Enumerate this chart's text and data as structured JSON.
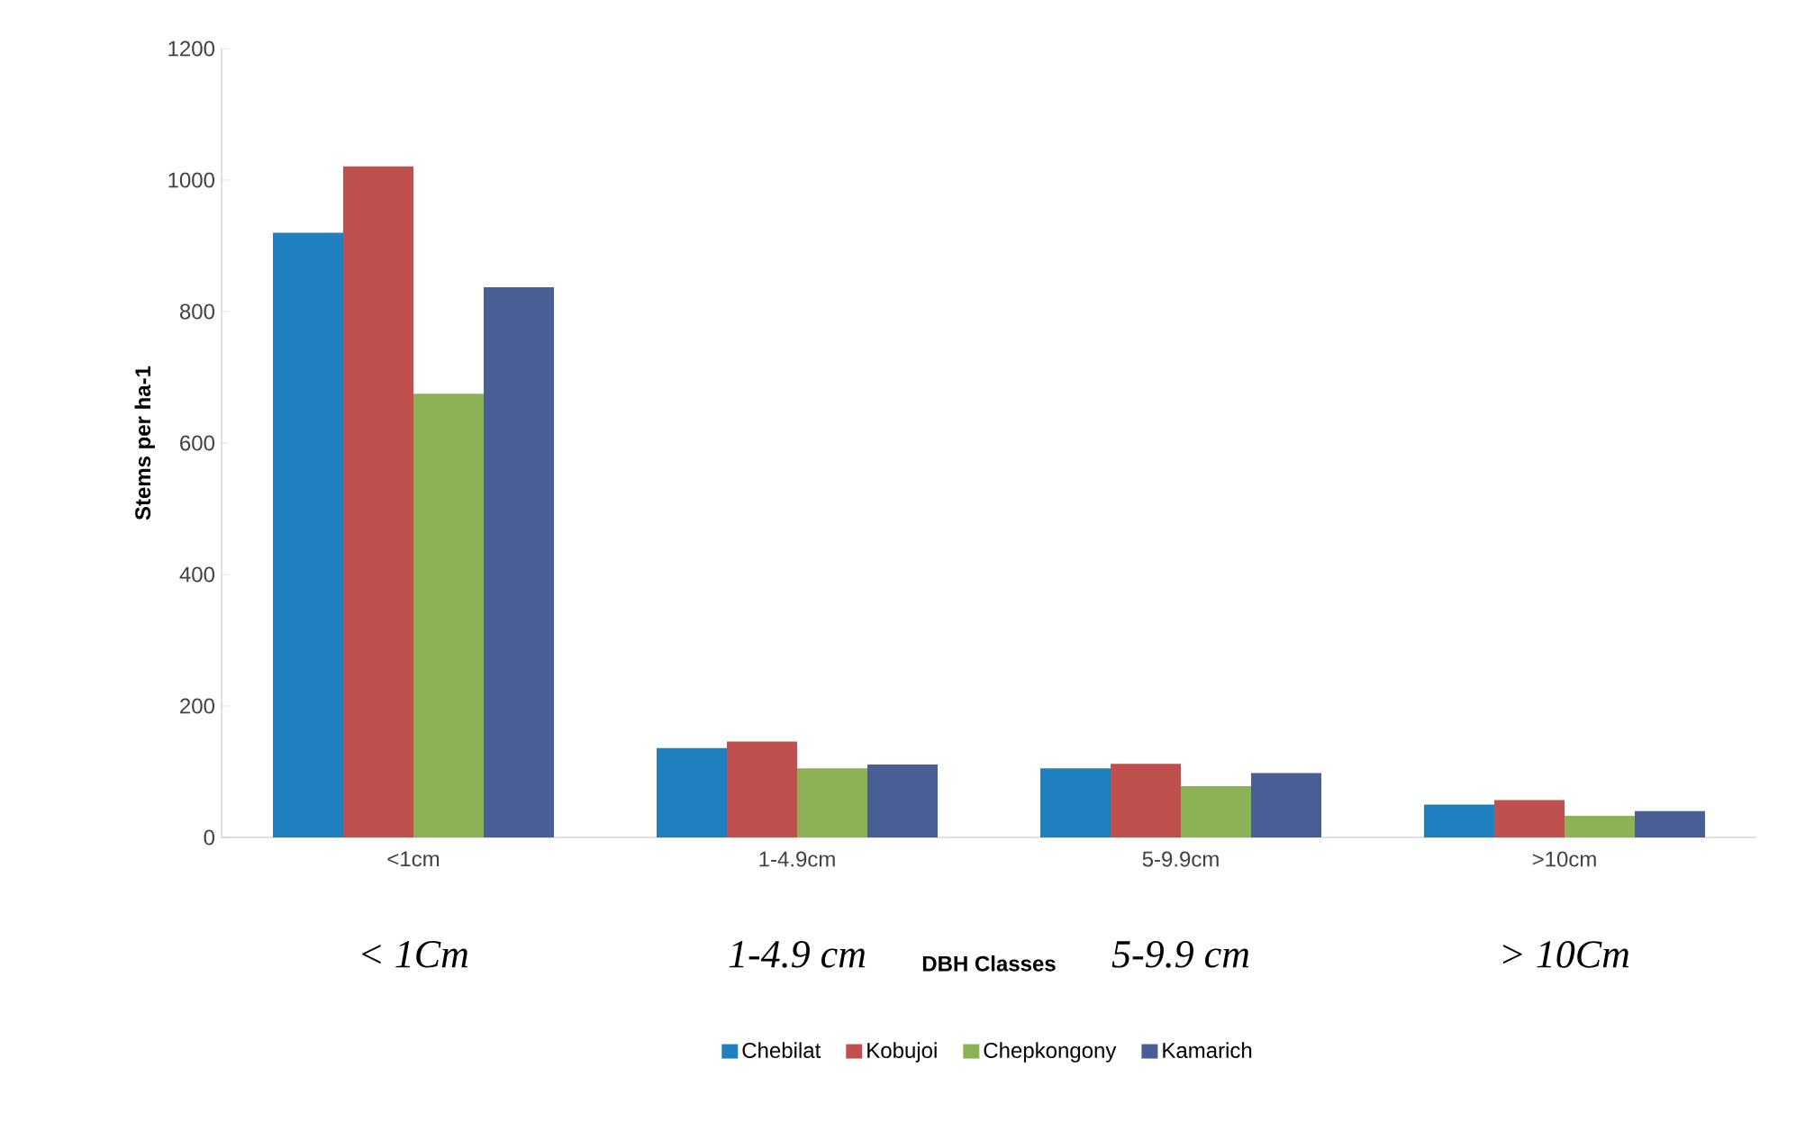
{
  "chart_data": {
    "type": "bar",
    "xlabel": "DBH Classes",
    "ylabel": "Stems per ha-1",
    "categories": [
      "<1cm",
      "1-4.9cm",
      "5-9.9cm",
      ">10cm"
    ],
    "series": [
      {
        "name": "Chebilat",
        "color": "#1f80c0",
        "values": [
          920,
          136,
          105,
          50
        ]
      },
      {
        "name": "Kobujoi",
        "color": "#c0504d",
        "values": [
          1021,
          146,
          112,
          57
        ]
      },
      {
        "name": "Chepkongony",
        "color": "#8db255",
        "values": [
          675,
          105,
          78,
          33
        ]
      },
      {
        "name": "Kamarich",
        "color": "#4a5e96",
        "values": [
          837,
          111,
          98,
          40
        ]
      }
    ],
    "ylim": [
      0,
      1200
    ],
    "yticks": [
      0,
      200,
      400,
      600,
      800,
      1000,
      1200
    ],
    "legend": "bottom",
    "annotations": [
      "< 1Cm",
      "1-4.9 cm",
      "5-9.9 cm",
      "> 10Cm"
    ]
  }
}
